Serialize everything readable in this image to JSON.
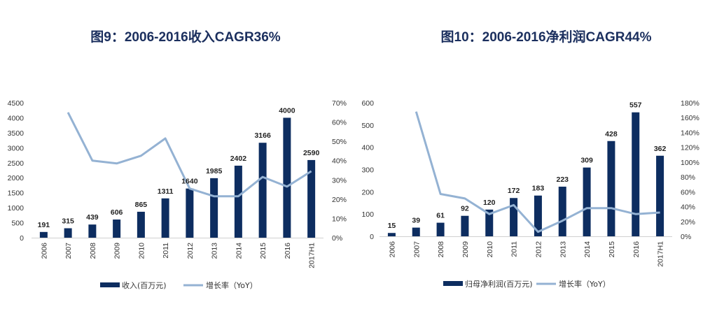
{
  "colors": {
    "bar": "#0d2d60",
    "line": "#94b2d3",
    "title": "#1b2f5e"
  },
  "chart_data": [
    {
      "type": "bar",
      "title": "图9：2006-2016收入CAGR36%",
      "categories": [
        "2006",
        "2007",
        "2008",
        "2009",
        "2010",
        "2011",
        "2012",
        "2013",
        "2014",
        "2015",
        "2016",
        "2017H1"
      ],
      "series": [
        {
          "name": "收入(百万元)",
          "type": "bar",
          "axis": "left",
          "values": [
            191,
            315,
            439,
            606,
            865,
            1311,
            1640,
            1985,
            2402,
            3166,
            4000,
            2590
          ],
          "labels": [
            "191",
            "315",
            "439",
            "606",
            "865",
            "1311",
            "1640",
            "1985",
            "2402",
            "3166",
            "4000",
            "2590"
          ]
        },
        {
          "name": "增长率（YoY）",
          "type": "line",
          "axis": "right",
          "values": [
            null,
            65,
            40,
            38.5,
            42.5,
            51.5,
            25.5,
            21.5,
            21.5,
            31.5,
            26.5,
            34.5
          ]
        }
      ],
      "ylim_left": [
        0,
        4500
      ],
      "yticks_left": [
        "0",
        "500",
        "1000",
        "1500",
        "2000",
        "2500",
        "3000",
        "3500",
        "4000",
        "4500"
      ],
      "ylim_right": [
        0,
        70
      ],
      "yticks_right": [
        "0%",
        "10%",
        "20%",
        "30%",
        "40%",
        "50%",
        "60%",
        "70%"
      ],
      "legend": "bottom"
    },
    {
      "type": "bar",
      "title": "图10：2006-2016净利润CAGR44%",
      "categories": [
        "2006",
        "2007",
        "2008",
        "2009",
        "2010",
        "2011",
        "2012",
        "2013",
        "2014",
        "2015",
        "2016",
        "2017H1"
      ],
      "series": [
        {
          "name": "归母净利润(百万元)",
          "type": "bar",
          "axis": "left",
          "values": [
            15,
            39,
            61,
            92,
            120,
            172,
            183,
            223,
            309,
            428,
            557,
            362
          ],
          "labels": [
            "15",
            "39",
            "61",
            "92",
            "120",
            "172",
            "183",
            "223",
            "309",
            "428",
            "557",
            "362"
          ]
        },
        {
          "name": "增长率（YoY）",
          "type": "line",
          "axis": "right",
          "values": [
            null,
            168,
            57,
            51,
            30,
            42,
            6,
            21,
            38,
            38,
            30,
            32
          ]
        }
      ],
      "ylim_left": [
        0,
        600
      ],
      "yticks_left": [
        "0",
        "100",
        "200",
        "300",
        "400",
        "500",
        "600"
      ],
      "ylim_right": [
        0,
        180
      ],
      "yticks_right": [
        "0%",
        "20%",
        "40%",
        "60%",
        "80%",
        "100%",
        "120%",
        "140%",
        "160%",
        "180%"
      ],
      "legend": "bottom"
    }
  ]
}
